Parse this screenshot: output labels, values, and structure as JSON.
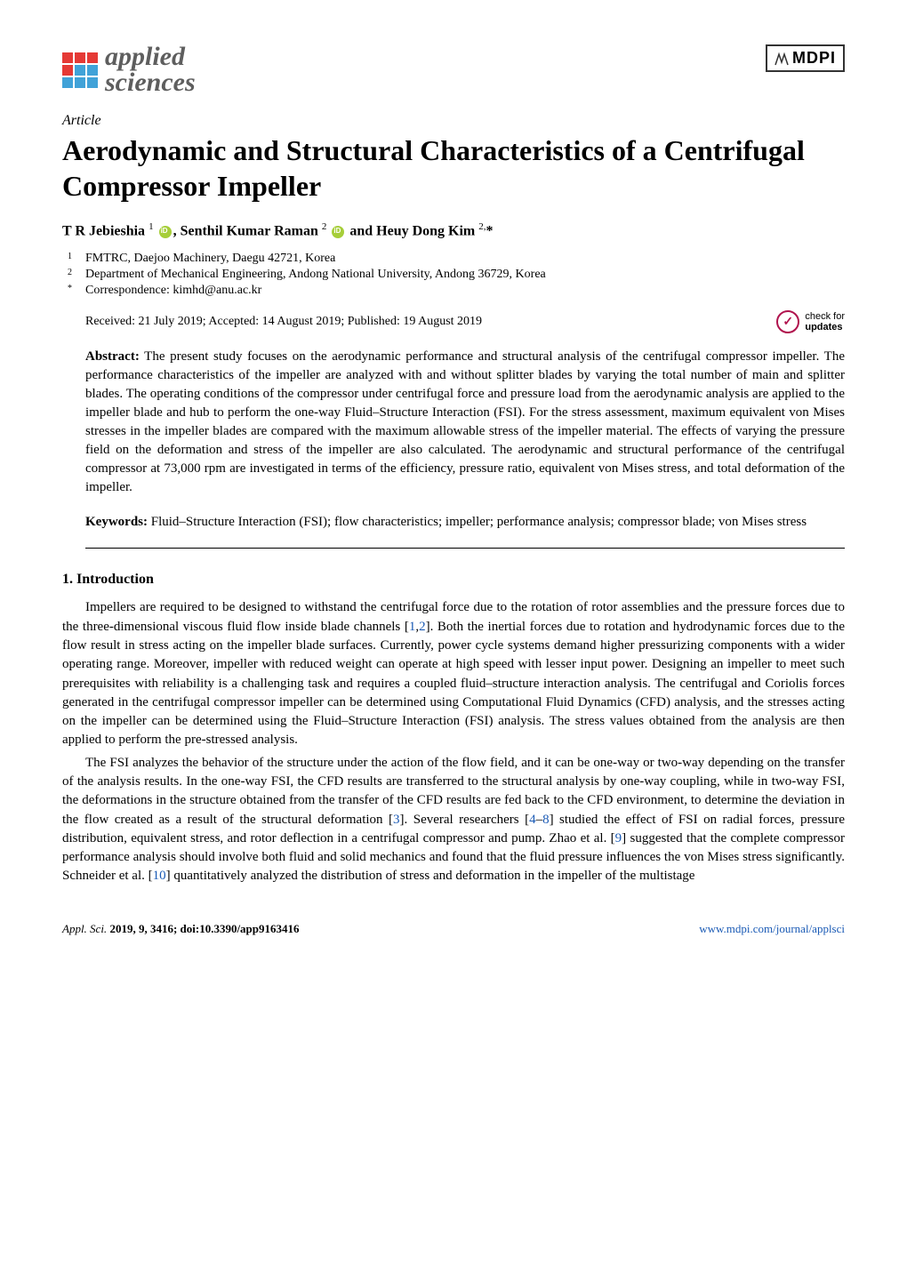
{
  "journal": {
    "logo_line1": "applied",
    "logo_line2": "sciences",
    "publisher_logo": "MDPI"
  },
  "article": {
    "type": "Article",
    "title": "Aerodynamic and Structural Characteristics of a Centrifugal Compressor Impeller",
    "authors_html": "T R Jebieshia <sup>1</sup> <span class=\"orcid\" data-name=\"orcid-icon\" data-interactable=\"false\"></span>, Senthil Kumar Raman <sup>2</sup> <span class=\"orcid\" data-name=\"orcid-icon\" data-interactable=\"false\"></span> and Heuy Dong Kim <sup>2,</sup>*",
    "affiliations": [
      {
        "num": "1",
        "text": "FMTRC, Daejoo Machinery, Daegu 42721, Korea"
      },
      {
        "num": "2",
        "text": "Department of Mechanical Engineering, Andong National University, Andong 36729, Korea"
      },
      {
        "num": "*",
        "text": "Correspondence: kimhd@anu.ac.kr"
      }
    ],
    "dates": "Received: 21 July 2019; Accepted: 14 August 2019; Published: 19 August 2019",
    "updates_badge": {
      "line1": "check for",
      "line2": "updates"
    },
    "abstract_label": "Abstract:",
    "abstract": "The present study focuses on the aerodynamic performance and structural analysis of the centrifugal compressor impeller. The performance characteristics of the impeller are analyzed with and without splitter blades by varying the total number of main and splitter blades. The operating conditions of the compressor under centrifugal force and pressure load from the aerodynamic analysis are applied to the impeller blade and hub to perform the one-way Fluid–Structure Interaction (FSI). For the stress assessment, maximum equivalent von Mises stresses in the impeller blades are compared with the maximum allowable stress of the impeller material. The effects of varying the pressure field on the deformation and stress of the impeller are also calculated. The aerodynamic and structural performance of the centrifugal compressor at 73,000 rpm are investigated in terms of the efficiency, pressure ratio, equivalent von Mises stress, and total deformation of the impeller.",
    "keywords_label": "Keywords:",
    "keywords": "Fluid–Structure Interaction (FSI); flow characteristics; impeller; performance analysis; compressor blade; von Mises stress"
  },
  "section": {
    "heading": "1. Introduction",
    "para1": "Impellers are required to be designed to withstand the centrifugal force due to the rotation of rotor assemblies and the pressure forces due to the three-dimensional viscous fluid flow inside blade channels [",
    "ref1": "1",
    "para1b": ",",
    "ref2": "2",
    "para1c": "]. Both the inertial forces due to rotation and hydrodynamic forces due to the flow result in stress acting on the impeller blade surfaces. Currently, power cycle systems demand higher pressurizing components with a wider operating range. Moreover, impeller with reduced weight can operate at high speed with lesser input power. Designing an impeller to meet such prerequisites with reliability is a challenging task and requires a coupled fluid–structure interaction analysis. The centrifugal and Coriolis forces generated in the centrifugal compressor impeller can be determined using Computational Fluid Dynamics (CFD) analysis, and the stresses acting on the impeller can be determined using the Fluid–Structure Interaction (FSI) analysis. The stress values obtained from the analysis are then applied to perform the pre-stressed analysis.",
    "para2a": "The FSI analyzes the behavior of the structure under the action of the flow field, and it can be one-way or two-way depending on the transfer of the analysis results. In the one-way FSI, the CFD results are transferred to the structural analysis by one-way coupling, while in two-way FSI, the deformations in the structure obtained from the transfer of the CFD results are fed back to the CFD environment, to determine the deviation in the flow created as a result of the structural deformation [",
    "ref3": "3",
    "para2b": "]. Several researchers [",
    "ref4": "4",
    "para2c": "–",
    "ref8": "8",
    "para2d": "] studied the effect of FSI on radial forces, pressure distribution, equivalent stress, and rotor deflection in a centrifugal compressor and pump. Zhao et al. [",
    "ref9": "9",
    "para2e": "] suggested that the complete compressor performance analysis should involve both fluid and solid mechanics and found that the fluid pressure influences the von Mises stress significantly. Schneider et al. [",
    "ref10": "10",
    "para2f": "] quantitatively analyzed the distribution of stress and deformation in the impeller of the multistage"
  },
  "footer": {
    "left_italic": "Appl. Sci.",
    "left_rest": " 2019, 9, 3416; doi:10.3390/app9163416",
    "right": "www.mdpi.com/journal/applsci"
  },
  "colors": {
    "ref_link": "#1a5ab5",
    "orcid": "#a6ce39",
    "logo_red": "#e53935",
    "logo_blue": "#40a2d8",
    "updates_accent": "#b0144e"
  },
  "typography": {
    "title_fontsize": 32,
    "body_fontsize": 15,
    "authors_fontsize": 16,
    "affil_fontsize": 14,
    "footer_fontsize": 13
  }
}
